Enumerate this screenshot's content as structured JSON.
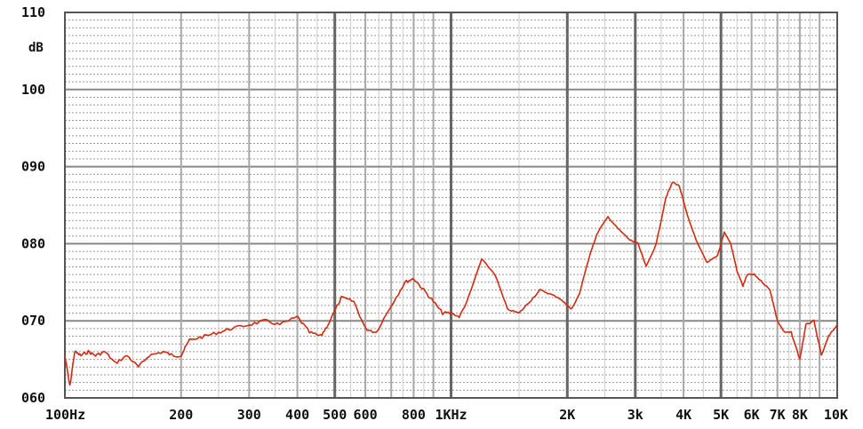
{
  "chart_data": {
    "type": "line",
    "title": "",
    "xlabel": "",
    "ylabel": "dB",
    "x_scale": "log",
    "xlim": [
      100,
      10000
    ],
    "ylim": [
      60,
      110
    ],
    "grid": true,
    "y_ticks": [
      {
        "value": 110,
        "label": "110"
      },
      {
        "value": 100,
        "label": "100"
      },
      {
        "value": 90,
        "label": "090"
      },
      {
        "value": 80,
        "label": "080"
      },
      {
        "value": 70,
        "label": "070"
      },
      {
        "value": 60,
        "label": "060"
      }
    ],
    "x_ticks": [
      {
        "value": 100,
        "label": "100Hz"
      },
      {
        "value": 200,
        "label": "200"
      },
      {
        "value": 300,
        "label": "300"
      },
      {
        "value": 400,
        "label": "400"
      },
      {
        "value": 500,
        "label": "500"
      },
      {
        "value": 600,
        "label": "600"
      },
      {
        "value": 800,
        "label": "800"
      },
      {
        "value": 1000,
        "label": "1KHz"
      },
      {
        "value": 2000,
        "label": "2K"
      },
      {
        "value": 3000,
        "label": "3k"
      },
      {
        "value": 4000,
        "label": "4K"
      },
      {
        "value": 5000,
        "label": "5K"
      },
      {
        "value": 6000,
        "label": "6K"
      },
      {
        "value": 7000,
        "label": "7K"
      },
      {
        "value": 8000,
        "label": "8K"
      },
      {
        "value": 10000,
        "label": "10K"
      }
    ],
    "series": [
      {
        "color": "#d42a10",
        "x": [
          100,
          103,
          106,
          110,
          115,
          120,
          127,
          135,
          145,
          155,
          165,
          180,
          190,
          200,
          210,
          230,
          250,
          270,
          300,
          330,
          360,
          400,
          430,
          460,
          480,
          520,
          560,
          600,
          640,
          700,
          760,
          800,
          850,
          900,
          950,
          1000,
          1050,
          1100,
          1200,
          1300,
          1400,
          1500,
          1600,
          1700,
          1800,
          1900,
          2000,
          2050,
          2150,
          2300,
          2400,
          2550,
          2700,
          2900,
          3050,
          3200,
          3400,
          3600,
          3750,
          3900,
          4100,
          4350,
          4600,
          4900,
          5100,
          5300,
          5500,
          5700,
          5850,
          6100,
          6400,
          6700,
          7000,
          7300,
          7600,
          8000,
          8300,
          8700,
          9100,
          9500,
          10000
        ],
        "y": [
          65.5,
          61.5,
          66,
          65.5,
          66,
          65.5,
          66,
          64.5,
          65.5,
          64,
          65.5,
          66,
          65.5,
          65.5,
          67.5,
          68,
          68.5,
          69,
          69.5,
          70,
          69.5,
          70.5,
          68.5,
          68,
          69.5,
          73,
          72.5,
          69,
          68.5,
          72,
          75,
          75.5,
          74,
          72.5,
          71,
          71,
          70.5,
          72.5,
          78,
          76,
          71.5,
          71,
          72.5,
          74,
          73.5,
          73,
          72,
          71.5,
          73.5,
          79,
          81.5,
          83.5,
          82,
          80.5,
          80,
          77,
          80,
          86,
          88,
          87.5,
          83.5,
          80,
          77.5,
          78.5,
          81.5,
          80,
          76.5,
          74.5,
          76,
          76,
          75,
          74,
          70,
          68.5,
          68.5,
          65,
          69.5,
          70,
          65.5,
          68,
          69.5
        ]
      }
    ]
  }
}
